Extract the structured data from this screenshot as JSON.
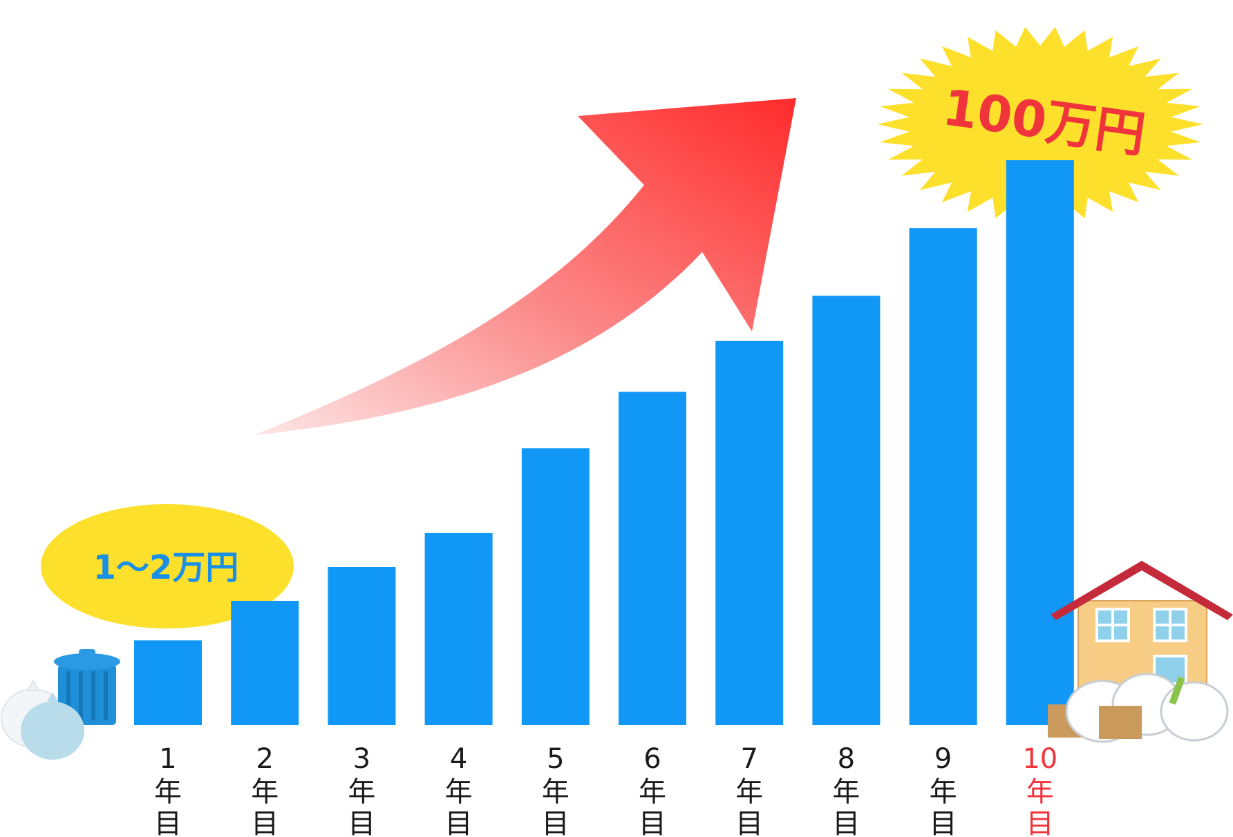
{
  "chart_data": {
    "type": "bar",
    "categories": [
      "1年目",
      "2年目",
      "3年目",
      "4年目",
      "5年目",
      "6年目",
      "7年目",
      "8年目",
      "9年目",
      "10年目"
    ],
    "tick_labels": [
      {
        "num": "1",
        "unit": "年",
        "suffix": "目"
      },
      {
        "num": "2",
        "unit": "年",
        "suffix": "目"
      },
      {
        "num": "3",
        "unit": "年",
        "suffix": "目"
      },
      {
        "num": "4",
        "unit": "年",
        "suffix": "目"
      },
      {
        "num": "5",
        "unit": "年",
        "suffix": "目"
      },
      {
        "num": "6",
        "unit": "年",
        "suffix": "目"
      },
      {
        "num": "7",
        "unit": "年",
        "suffix": "目"
      },
      {
        "num": "8",
        "unit": "年",
        "suffix": "目"
      },
      {
        "num": "9",
        "unit": "年",
        "suffix": "目"
      },
      {
        "num": "10",
        "unit": "年",
        "suffix": "目"
      }
    ],
    "values": [
      15,
      22,
      28,
      34,
      49,
      59,
      68,
      76,
      88,
      100
    ],
    "ylim": [
      0,
      100
    ],
    "grid": false,
    "legend": "none",
    "highlight_index": 9,
    "callouts": {
      "low": {
        "text": "1〜2万円",
        "category": "1年目"
      },
      "high": {
        "text": "100万円",
        "category": "10年目"
      }
    },
    "trend_arrow": "rising"
  },
  "colors": {
    "bar": "#1198f6",
    "highlight_label": "#f0343b",
    "callout_fill": "#fde02b",
    "arrow_start": "#fcd0d0",
    "arrow_end": "#ff2b2b",
    "callout_low_text": "#1a8fe6",
    "callout_high_text": "#f0343b"
  },
  "icons": {
    "left": "trash-can-with-garbage-bags-icon",
    "right": "house-with-garbage-bags-icon"
  }
}
